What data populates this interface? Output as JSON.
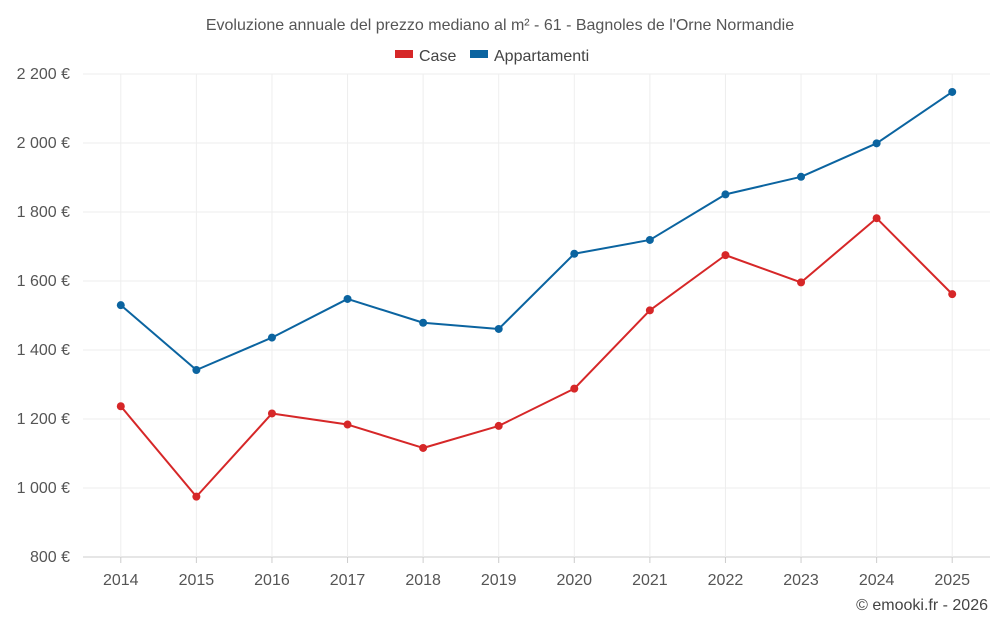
{
  "chart_data": {
    "type": "line",
    "title": "Evoluzione annuale del prezzo mediano al m² - 61 - Bagnoles de l'Orne Normandie",
    "categories": [
      "2014",
      "2015",
      "2016",
      "2017",
      "2018",
      "2019",
      "2020",
      "2021",
      "2022",
      "2023",
      "2024",
      "2025"
    ],
    "series": [
      {
        "name": "Case",
        "color": "#d62728",
        "values": [
          1237,
          975,
          1216,
          1184,
          1116,
          1180,
          1288,
          1515,
          1675,
          1596,
          1782,
          1562
        ]
      },
      {
        "name": "Appartamenti",
        "color": "#0b64a0",
        "values": [
          1530,
          1342,
          1436,
          1548,
          1479,
          1461,
          1679,
          1719,
          1851,
          1902,
          1999,
          2148
        ]
      }
    ],
    "y_ticks": [
      800,
      1000,
      1200,
      1400,
      1600,
      1800,
      2000,
      2200
    ],
    "y_tick_labels": [
      "800 €",
      "1 000 €",
      "1 200 €",
      "1 400 €",
      "1 600 €",
      "1 800 €",
      "2 000 €",
      "2 200 €"
    ],
    "ylim": [
      800,
      2200
    ],
    "grid": true,
    "legend_position": "top-center",
    "credit": "© emooki.fr - 2026"
  }
}
